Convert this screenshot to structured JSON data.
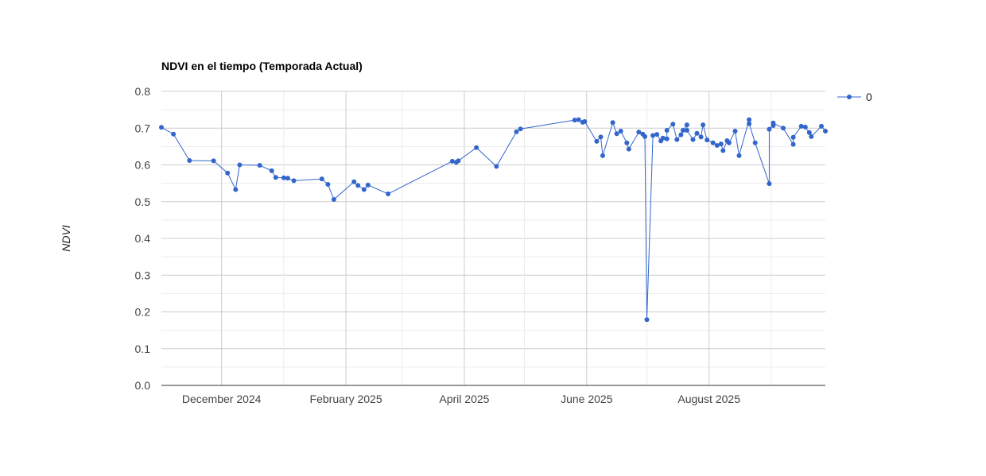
{
  "chart_data": {
    "type": "line",
    "title": "NDVI en el tiempo (Temporada Actual)",
    "xlabel": "",
    "ylabel": "NDVI",
    "ylim": [
      0,
      0.8
    ],
    "yticks": [
      "0.0",
      "0.1",
      "0.2",
      "0.3",
      "0.4",
      "0.5",
      "0.6",
      "0.7",
      "0.8"
    ],
    "xlim": [
      "2024-11-01",
      "2025-09-28"
    ],
    "xticks": [
      {
        "label": "December 2024",
        "date": "2024-12-01"
      },
      {
        "label": "February 2025",
        "date": "2025-02-01"
      },
      {
        "label": "April 2025",
        "date": "2025-04-01"
      },
      {
        "label": "June 2025",
        "date": "2025-06-01"
      },
      {
        "label": "August 2025",
        "date": "2025-08-01"
      }
    ],
    "minor_gridlines_x": [
      "2025-01-01",
      "2025-03-01",
      "2025-05-01",
      "2025-07-01",
      "2025-09-01"
    ],
    "grid": true,
    "legend_position": "right",
    "series": [
      {
        "name": "0",
        "color": "#3366cc",
        "points": [
          [
            "2024-11-01",
            0.702
          ],
          [
            "2024-11-07",
            0.684
          ],
          [
            "2024-11-15",
            0.612
          ],
          [
            "2024-11-27",
            0.611
          ],
          [
            "2024-12-04",
            0.578
          ],
          [
            "2024-12-08",
            0.533
          ],
          [
            "2024-12-10",
            0.6
          ],
          [
            "2024-12-20",
            0.599
          ],
          [
            "2024-12-26",
            0.584
          ],
          [
            "2024-12-28",
            0.566
          ],
          [
            "2025-01-01",
            0.565
          ],
          [
            "2025-01-03",
            0.564
          ],
          [
            "2025-01-06",
            0.557
          ],
          [
            "2025-01-20",
            0.562
          ],
          [
            "2025-01-23",
            0.547
          ],
          [
            "2025-01-26",
            0.506
          ],
          [
            "2025-02-05",
            0.554
          ],
          [
            "2025-02-07",
            0.544
          ],
          [
            "2025-02-10",
            0.533
          ],
          [
            "2025-02-12",
            0.545
          ],
          [
            "2025-02-22",
            0.521
          ],
          [
            "2025-03-26",
            0.61
          ],
          [
            "2025-03-28",
            0.607
          ],
          [
            "2025-03-29",
            0.611
          ],
          [
            "2025-04-07",
            0.647
          ],
          [
            "2025-04-17",
            0.596
          ],
          [
            "2025-04-27",
            0.69
          ],
          [
            "2025-04-29",
            0.698
          ],
          [
            "2025-05-26",
            0.722
          ],
          [
            "2025-05-28",
            0.723
          ],
          [
            "2025-05-30",
            0.716
          ],
          [
            "2025-05-31",
            0.718
          ],
          [
            "2025-06-06",
            0.664
          ],
          [
            "2025-06-08",
            0.676
          ],
          [
            "2025-06-09",
            0.625
          ],
          [
            "2025-06-14",
            0.715
          ],
          [
            "2025-06-16",
            0.685
          ],
          [
            "2025-06-18",
            0.692
          ],
          [
            "2025-06-21",
            0.66
          ],
          [
            "2025-06-22",
            0.643
          ],
          [
            "2025-06-27",
            0.689
          ],
          [
            "2025-06-29",
            0.684
          ],
          [
            "2025-06-30",
            0.677
          ],
          [
            "2025-07-01",
            0.179
          ],
          [
            "2025-07-04",
            0.68
          ],
          [
            "2025-07-06",
            0.683
          ],
          [
            "2025-07-08",
            0.665
          ],
          [
            "2025-07-09",
            0.673
          ],
          [
            "2025-07-11",
            0.671
          ],
          [
            "2025-07-11",
            0.694
          ],
          [
            "2025-07-14",
            0.711
          ],
          [
            "2025-07-16",
            0.669
          ],
          [
            "2025-07-18",
            0.682
          ],
          [
            "2025-07-19",
            0.694
          ],
          [
            "2025-07-21",
            0.709
          ],
          [
            "2025-07-21",
            0.694
          ],
          [
            "2025-07-24",
            0.669
          ],
          [
            "2025-07-26",
            0.686
          ],
          [
            "2025-07-28",
            0.676
          ],
          [
            "2025-07-29",
            0.709
          ],
          [
            "2025-07-31",
            0.668
          ],
          [
            "2025-08-03",
            0.66
          ],
          [
            "2025-08-05",
            0.653
          ],
          [
            "2025-08-07",
            0.657
          ],
          [
            "2025-08-08",
            0.639
          ],
          [
            "2025-08-10",
            0.666
          ],
          [
            "2025-08-11",
            0.66
          ],
          [
            "2025-08-14",
            0.692
          ],
          [
            "2025-08-16",
            0.625
          ],
          [
            "2025-08-21",
            0.723
          ],
          [
            "2025-08-21",
            0.712
          ],
          [
            "2025-08-24",
            0.66
          ],
          [
            "2025-08-31",
            0.549
          ],
          [
            "2025-08-31",
            0.697
          ],
          [
            "2025-09-02",
            0.707
          ],
          [
            "2025-09-02",
            0.714
          ],
          [
            "2025-09-07",
            0.7
          ],
          [
            "2025-09-12",
            0.656
          ],
          [
            "2025-09-12",
            0.675
          ],
          [
            "2025-09-16",
            0.705
          ],
          [
            "2025-09-18",
            0.703
          ],
          [
            "2025-09-20",
            0.688
          ],
          [
            "2025-09-21",
            0.677
          ],
          [
            "2025-09-26",
            0.705
          ],
          [
            "2025-09-28",
            0.692
          ]
        ]
      }
    ]
  }
}
